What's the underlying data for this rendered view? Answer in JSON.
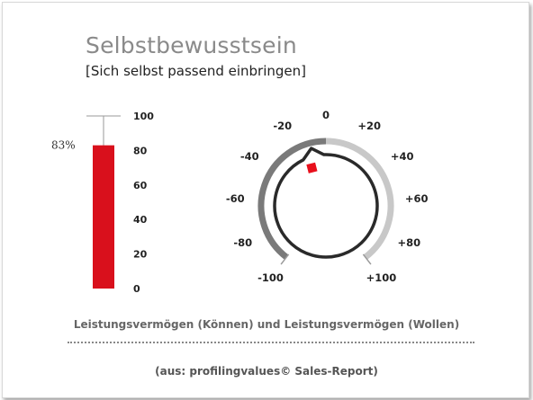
{
  "title": "Selbstbewusstsein",
  "subtitle": "[Sich selbst passend einbringen]",
  "caption": "Leistungsvermögen (Können) und Leistungsvermögen (Wollen)",
  "source": "(aus: profilingvalues© Sales-Report)",
  "colors": {
    "bar": "#d9101c",
    "marker": "#e8101c",
    "dial_dark": "#7a7a7a",
    "dial_light": "#c8c8c8",
    "knob": "#2a2a2a"
  },
  "chart_data": [
    {
      "type": "bar",
      "categories": [
        ""
      ],
      "values": [
        83
      ],
      "value_label": "83%",
      "ylim": [
        0,
        100
      ],
      "yticks": [
        0,
        20,
        40,
        60,
        80,
        100
      ],
      "ytick_labels": [
        "0",
        "20",
        "40",
        "60",
        "80",
        "100"
      ]
    },
    {
      "type": "gauge",
      "range": [
        -100,
        100
      ],
      "value": -10,
      "ticks": [
        -100,
        -80,
        -60,
        -40,
        -20,
        0,
        20,
        40,
        60,
        80,
        100
      ],
      "tick_labels": [
        "-100",
        "-80",
        "-60",
        "-40",
        "-20",
        "0",
        "+20",
        "+40",
        "+60",
        "+80",
        "+100"
      ]
    }
  ]
}
